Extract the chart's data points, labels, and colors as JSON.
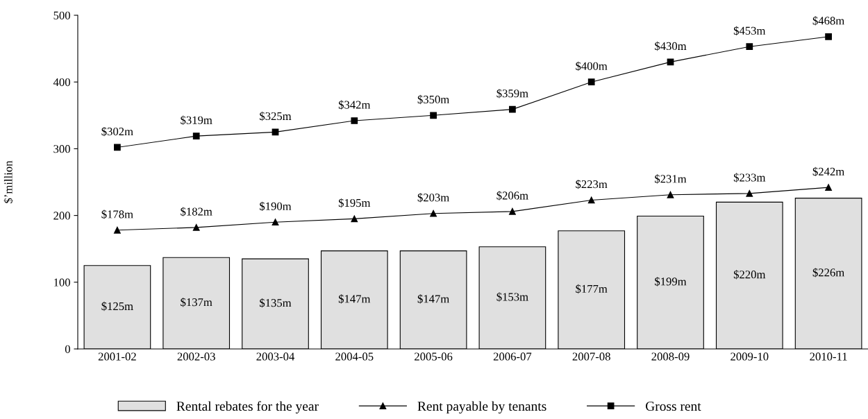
{
  "chart_data": {
    "type": "bar",
    "ylabel": "$’million",
    "categories": [
      "2001-02",
      "2002-03",
      "2003-04",
      "2004-05",
      "2005-06",
      "2006-07",
      "2007-08",
      "2008-09",
      "2009-10",
      "2010-11"
    ],
    "series": [
      {
        "name": "Rental rebates for the year",
        "color": "#e0e0e0",
        "values": [
          125,
          137,
          135,
          147,
          147,
          153,
          177,
          199,
          220,
          226
        ],
        "value_labels": [
          "$125m",
          "$137m",
          "$135m",
          "$147m",
          "$147m",
          "$153m",
          "$177m",
          "$199m",
          "$220m",
          "$226m"
        ]
      },
      {
        "name": "Rent payable by tenants",
        "type": "line",
        "color": "#000000",
        "marker": "triangle",
        "values": [
          178,
          182,
          190,
          195,
          203,
          206,
          223,
          231,
          233,
          242
        ],
        "value_labels": [
          "$178m",
          "$182m",
          "$190m",
          "$195m",
          "$203m",
          "$206m",
          "$223m",
          "$231m",
          "$233m",
          "$242m"
        ]
      },
      {
        "name": "Gross rent",
        "type": "line",
        "color": "#000000",
        "marker": "square",
        "values": [
          302,
          319,
          325,
          342,
          350,
          359,
          400,
          430,
          453,
          468
        ],
        "value_labels": [
          "$302m",
          "$319m",
          "$325m",
          "$342m",
          "$350m",
          "$359m",
          "$400m",
          "$430m",
          "$453m",
          "$468m"
        ]
      }
    ],
    "ylim": [
      0,
      500
    ],
    "yticks": [
      0,
      100,
      200,
      300,
      400,
      500
    ],
    "grid": false,
    "legend": "bottom"
  }
}
